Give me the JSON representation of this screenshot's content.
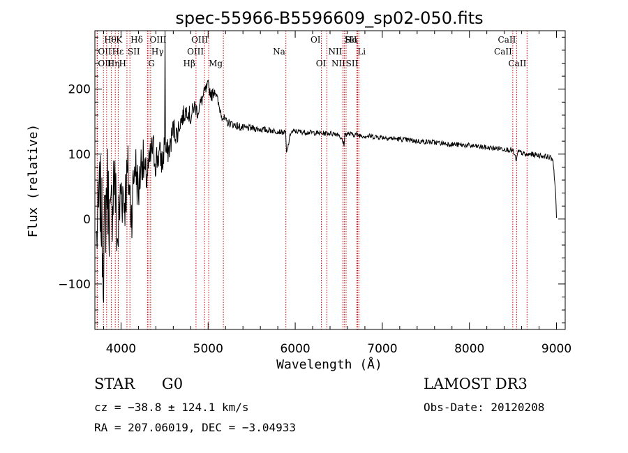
{
  "chart_data": {
    "type": "line",
    "title": "spec-55966-B5596609_sp02-050.fits",
    "xlabel": "Wavelength (Å)",
    "ylabel": "Flux (relative)",
    "xlim": [
      3700,
      9100
    ],
    "ylim": [
      -170,
      290
    ],
    "xticks": [
      4000,
      5000,
      6000,
      7000,
      8000,
      9000
    ],
    "yticks": [
      -100,
      0,
      100,
      200
    ],
    "xtick_labels": [
      "4000",
      "5000",
      "6000",
      "7000",
      "8000",
      "9000"
    ],
    "ytick_labels": [
      "−100",
      "0",
      "100",
      "200"
    ],
    "xminor_step": 200,
    "yminor_step": 20,
    "spectrum": {
      "name": "flux",
      "x": [
        3720,
        3760,
        3800,
        3840,
        3880,
        3920,
        3960,
        4000,
        4040,
        4080,
        4120,
        4160,
        4200,
        4240,
        4280,
        4320,
        4360,
        4400,
        4440,
        4480,
        4500,
        4520,
        4560,
        4600,
        4640,
        4680,
        4720,
        4760,
        4800,
        4840,
        4880,
        4920,
        4960,
        5000,
        5040,
        5080,
        5120,
        5160,
        5200,
        5300,
        5400,
        5500,
        5600,
        5700,
        5800,
        5890,
        5900,
        5950,
        6000,
        6100,
        6200,
        6300,
        6400,
        6500,
        6560,
        6570,
        6600,
        6700,
        6800,
        7000,
        7200,
        7400,
        7600,
        7800,
        8000,
        8200,
        8400,
        8500,
        8540,
        8560,
        8600,
        8660,
        8700,
        8800,
        8900,
        8960,
        8990,
        9000
      ],
      "y": [
        -30,
        40,
        -60,
        60,
        -20,
        80,
        -40,
        50,
        30,
        70,
        10,
        90,
        40,
        100,
        60,
        80,
        110,
        90,
        100,
        85,
        120,
        100,
        110,
        140,
        130,
        150,
        160,
        170,
        155,
        175,
        165,
        180,
        195,
        205,
        190,
        200,
        175,
        160,
        150,
        145,
        140,
        140,
        138,
        137,
        135,
        133,
        100,
        134,
        135,
        134,
        133,
        132,
        132,
        131,
        115,
        130,
        131,
        130,
        128,
        126,
        123,
        120,
        118,
        115,
        113,
        110,
        108,
        105,
        90,
        104,
        102,
        98,
        100,
        98,
        96,
        92,
        40,
        0
      ],
      "noise": [
        60,
        70,
        80,
        75,
        70,
        70,
        65,
        60,
        55,
        50,
        50,
        45,
        40,
        40,
        35,
        30,
        30,
        30,
        25,
        25,
        20,
        20,
        20,
        20,
        18,
        16,
        15,
        14,
        14,
        13,
        12,
        12,
        11,
        10,
        10,
        9,
        8,
        8,
        7,
        6,
        6,
        5,
        5,
        5,
        4,
        4,
        4,
        4,
        4,
        4,
        4,
        4,
        4,
        4,
        4,
        4,
        4,
        4,
        4,
        4,
        4,
        4,
        4,
        4,
        4,
        4,
        4,
        4,
        4,
        4,
        4,
        4,
        4,
        4,
        4,
        4,
        4,
        4
      ]
    },
    "spike": {
      "x": 4505,
      "y": 300
    },
    "lines": [
      {
        "label": "Hθ",
        "x": 3798,
        "row": 1,
        "side": "right"
      },
      {
        "label": "OII",
        "x": 3727,
        "row": 2,
        "side": "right"
      },
      {
        "label": "OII",
        "x": 3727,
        "row": 3,
        "side": "right"
      },
      {
        "label": "Hε",
        "x": 3889,
        "row": 2,
        "side": "right"
      },
      {
        "label": "Hη",
        "x": 3835,
        "row": 3,
        "side": "right"
      },
      {
        "label": "K",
        "x": 3934,
        "row": 1,
        "side": "right"
      },
      {
        "label": "H",
        "x": 3968,
        "row": 3,
        "side": "right"
      },
      {
        "label": "SII",
        "x": 4068,
        "row": 2,
        "side": "right"
      },
      {
        "label": "Hδ",
        "x": 4102,
        "row": 1,
        "side": "right"
      },
      {
        "label": "OIII",
        "x": 4320,
        "row": 1,
        "side": "right"
      },
      {
        "label": "Hγ",
        "x": 4340,
        "row": 2,
        "side": "right"
      },
      {
        "label": "G",
        "x": 4304,
        "row": 3,
        "side": "right"
      },
      {
        "label": "Hβ",
        "x": 4861,
        "row": 3,
        "side": "left"
      },
      {
        "label": "OIII",
        "x": 4959,
        "row": 2,
        "side": "left"
      },
      {
        "label": "OIII",
        "x": 5007,
        "row": 1,
        "side": "left"
      },
      {
        "label": "Mg",
        "x": 5175,
        "row": 3,
        "side": "left"
      },
      {
        "label": "Na",
        "x": 5893,
        "row": 2,
        "side": "left"
      },
      {
        "label": "OI",
        "x": 6300,
        "row": 1,
        "side": "left"
      },
      {
        "label": "OI",
        "x": 6363,
        "row": 3,
        "side": "left"
      },
      {
        "label": "NII",
        "x": 6548,
        "row": 2,
        "side": "left"
      },
      {
        "label": "NII",
        "x": 6584,
        "row": 3,
        "side": "left"
      },
      {
        "label": "Hα",
        "x": 6563,
        "row": 1,
        "side": "right"
      },
      {
        "label": "SII",
        "x": 6717,
        "row": 1,
        "side": "left"
      },
      {
        "label": "Li",
        "x": 6707,
        "row": 2,
        "side": "right"
      },
      {
        "label": "SII",
        "x": 6731,
        "row": 3,
        "side": "left"
      },
      {
        "label": "CaII",
        "x": 8498,
        "row": 2,
        "side": "left"
      },
      {
        "label": "CaII",
        "x": 8542,
        "row": 1,
        "side": "left"
      },
      {
        "label": "CaII",
        "x": 8662,
        "row": 3,
        "side": "left"
      }
    ],
    "line_color": "#cc0000"
  },
  "info": {
    "class_label": "STAR",
    "subclass": "G0",
    "survey": "LAMOST DR3",
    "cz": "cz = −38.8 ± 124.1 km/s",
    "obs_date": "Obs-Date: 20120208",
    "coords": "RA = 207.06019, DEC =  −3.04933"
  }
}
